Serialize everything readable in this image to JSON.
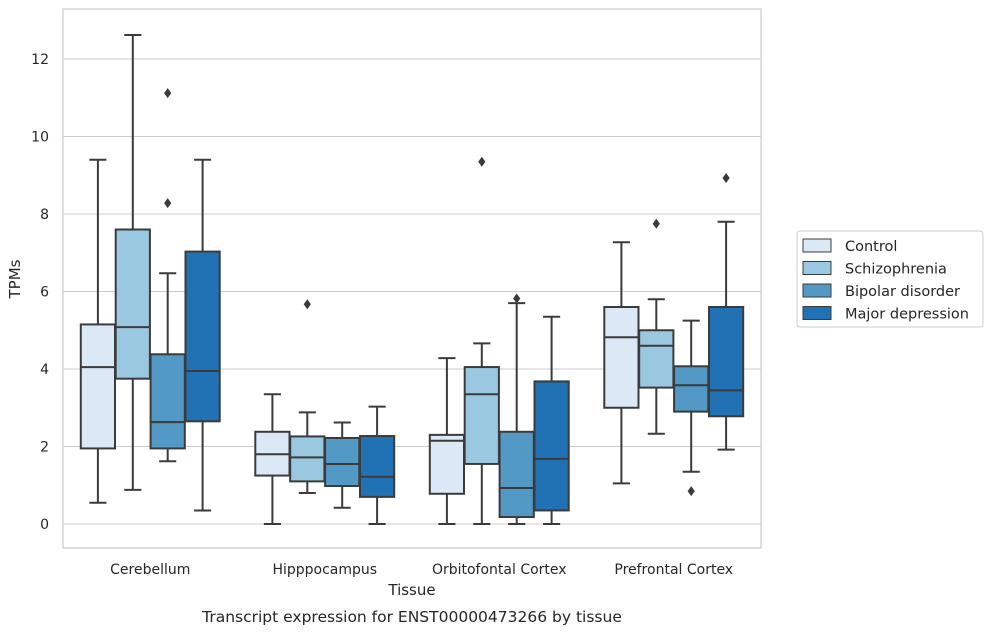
{
  "chart_data": {
    "type": "box",
    "title": "",
    "caption": "Transcript expression for ENST00000473266 by tissue",
    "xlabel": "Tissue",
    "ylabel": "TPMs",
    "ylim": [
      -0.6,
      13.3
    ],
    "yticks": [
      0,
      2,
      4,
      6,
      8,
      10,
      12
    ],
    "ytick_labels": [
      "0",
      "2",
      "4",
      "6",
      "8",
      "10",
      "12"
    ],
    "grid": "horizontal",
    "legend_position": "right",
    "categories": [
      "Cerebellum",
      "Hipppocampus",
      "Orbitofontal Cortex",
      "Prefrontal Cortex"
    ],
    "series": [
      {
        "name": "Control",
        "color": "#dbe9f6",
        "boxes": [
          {
            "whislo": 0.55,
            "q1": 1.95,
            "med": 4.05,
            "q3": 5.15,
            "whishi": 9.4,
            "fliers": []
          },
          {
            "whislo": 0.0,
            "q1": 1.25,
            "med": 1.8,
            "q3": 2.38,
            "whishi": 3.35,
            "fliers": []
          },
          {
            "whislo": 0.0,
            "q1": 0.78,
            "med": 2.15,
            "q3": 2.3,
            "whishi": 4.28,
            "fliers": []
          },
          {
            "whislo": 1.05,
            "q1": 3.0,
            "med": 4.82,
            "q3": 5.6,
            "whishi": 7.27,
            "fliers": []
          }
        ]
      },
      {
        "name": "Schizophrenia",
        "color": "#9ac8e0",
        "boxes": [
          {
            "whislo": 0.88,
            "q1": 3.75,
            "med": 5.08,
            "q3": 7.6,
            "whishi": 12.62,
            "fliers": []
          },
          {
            "whislo": 0.8,
            "q1": 1.1,
            "med": 1.72,
            "q3": 2.26,
            "whishi": 2.88,
            "fliers": [
              5.67
            ]
          },
          {
            "whislo": 0.0,
            "q1": 1.55,
            "med": 3.35,
            "q3": 4.05,
            "whishi": 4.66,
            "fliers": [
              9.35
            ]
          },
          {
            "whislo": 2.33,
            "q1": 3.52,
            "med": 4.6,
            "q3": 5.0,
            "whishi": 5.8,
            "fliers": [
              7.75
            ]
          }
        ]
      },
      {
        "name": "Bipolar disorder",
        "color": "#5399c6",
        "boxes": [
          {
            "whislo": 1.62,
            "q1": 1.95,
            "med": 2.63,
            "q3": 4.38,
            "whishi": 6.47,
            "fliers": [
              8.28,
              11.12
            ]
          },
          {
            "whislo": 0.42,
            "q1": 0.98,
            "med": 1.55,
            "q3": 2.22,
            "whishi": 2.62,
            "fliers": []
          },
          {
            "whislo": 0.0,
            "q1": 0.18,
            "med": 0.93,
            "q3": 2.38,
            "whishi": 5.7,
            "fliers": [
              5.82
            ]
          },
          {
            "whislo": 1.35,
            "q1": 2.9,
            "med": 3.58,
            "q3": 4.07,
            "whishi": 5.25,
            "fliers": [
              0.85
            ]
          }
        ]
      },
      {
        "name": "Major depression",
        "color": "#2171b5",
        "boxes": [
          {
            "whislo": 0.35,
            "q1": 2.65,
            "med": 3.95,
            "q3": 7.03,
            "whishi": 9.4,
            "fliers": []
          },
          {
            "whislo": 0.0,
            "q1": 0.7,
            "med": 1.22,
            "q3": 2.27,
            "whishi": 3.03,
            "fliers": []
          },
          {
            "whislo": 0.0,
            "q1": 0.35,
            "med": 1.68,
            "q3": 3.68,
            "whishi": 5.35,
            "fliers": []
          },
          {
            "whislo": 1.92,
            "q1": 2.78,
            "med": 3.45,
            "q3": 5.6,
            "whishi": 7.8,
            "fliers": [
              8.93
            ]
          }
        ]
      }
    ]
  }
}
